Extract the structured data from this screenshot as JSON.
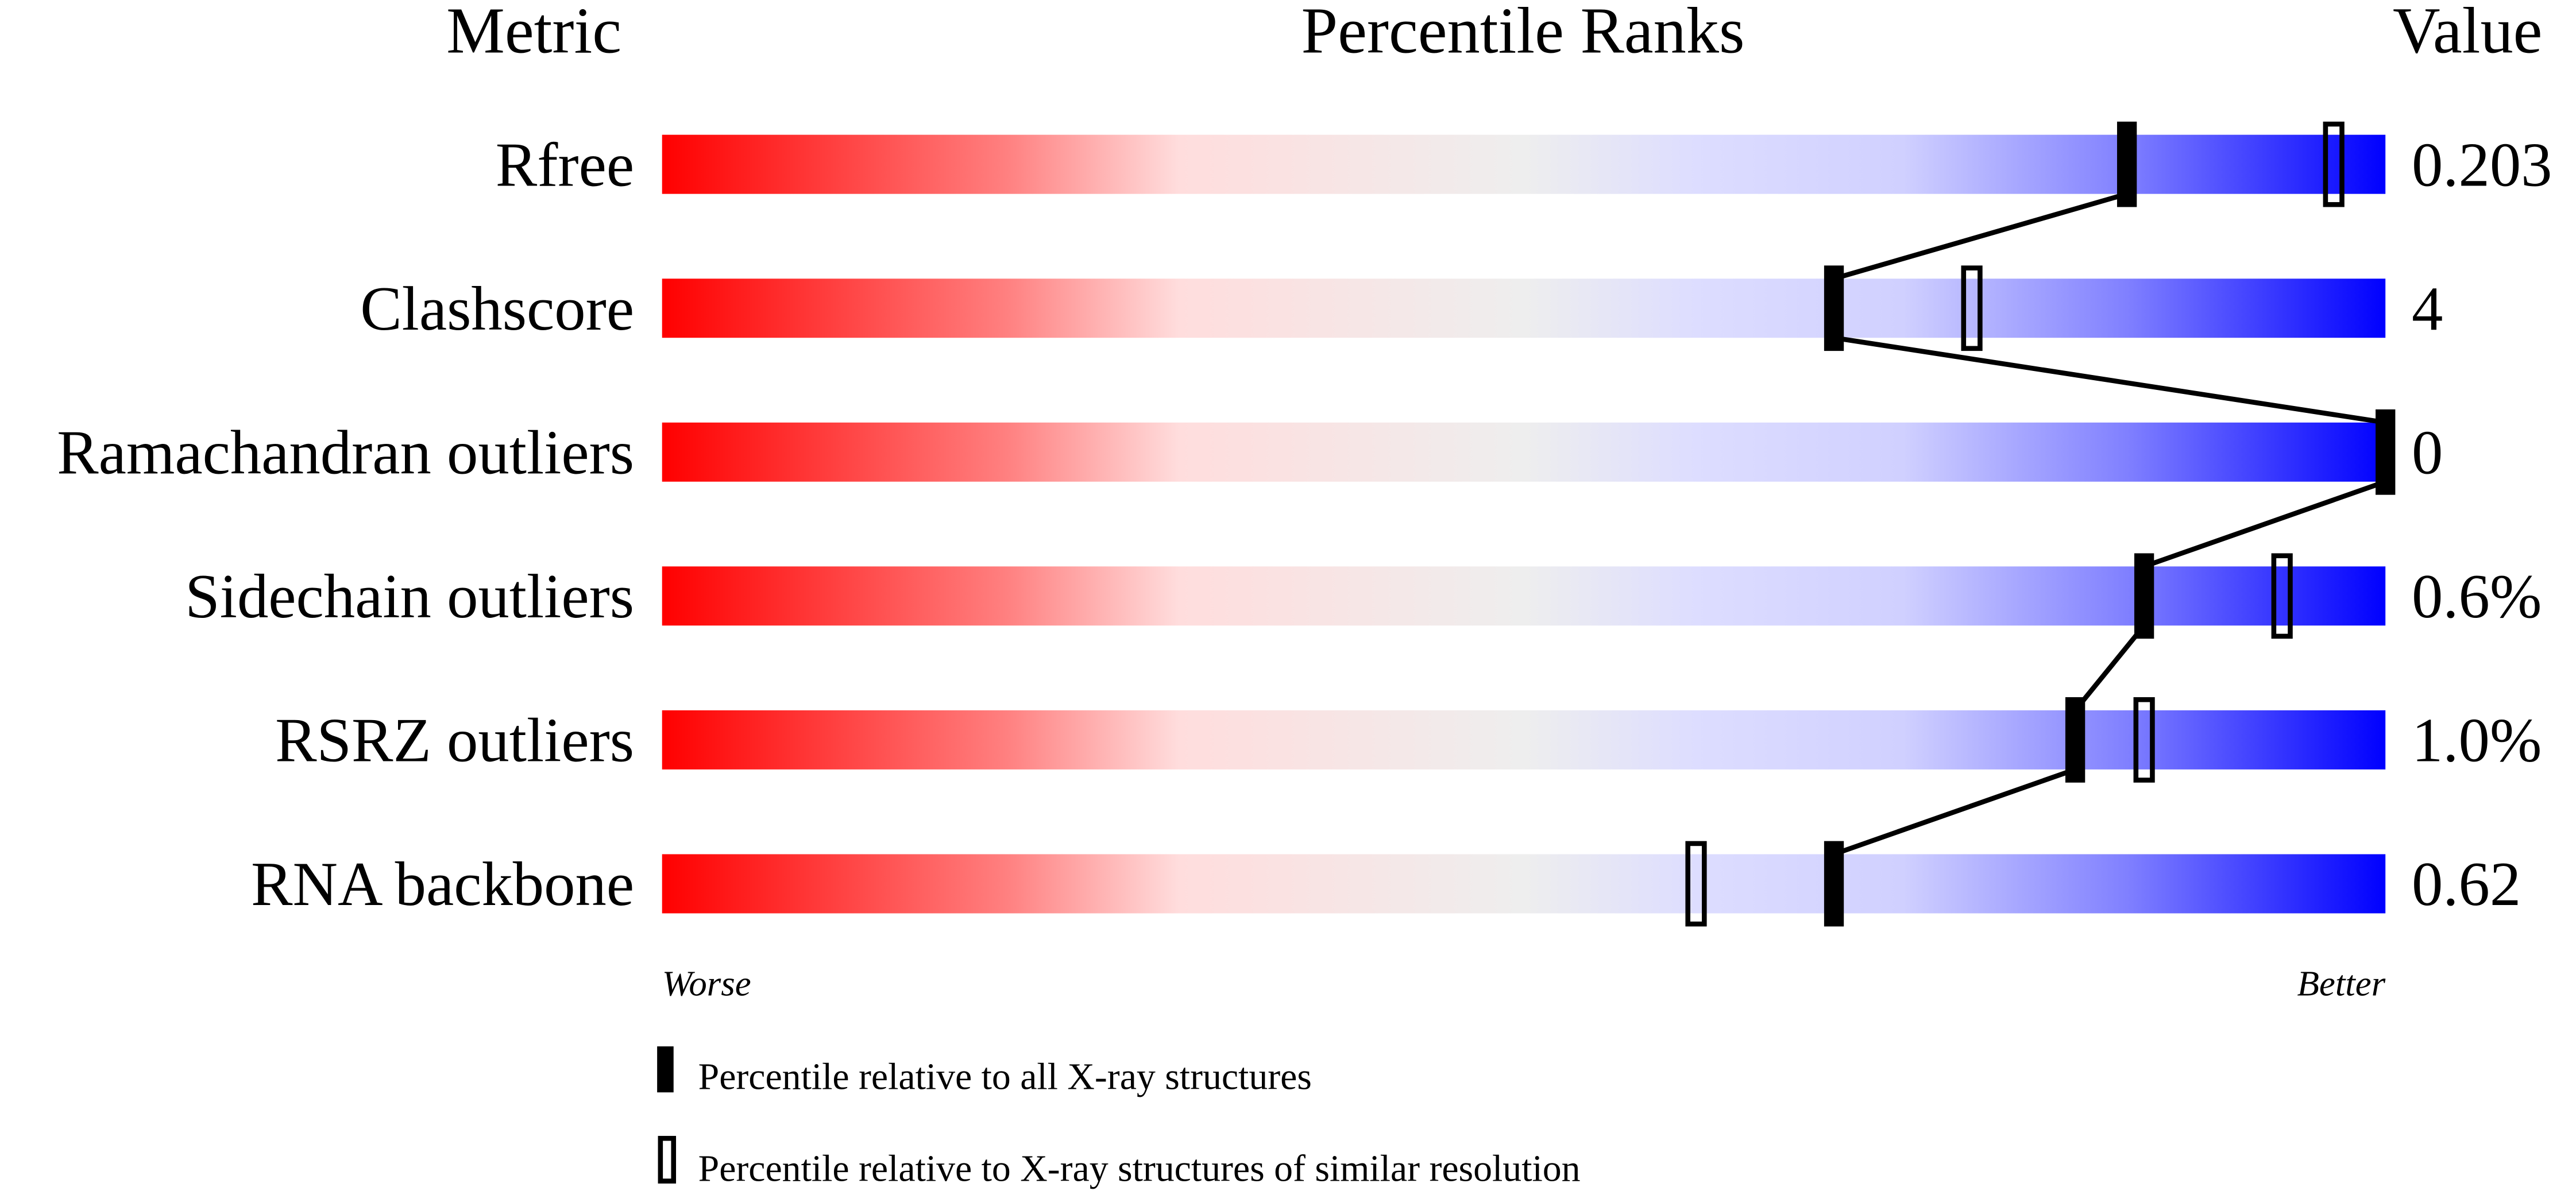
{
  "chart_data": {
    "type": "percentile-slider",
    "headers": {
      "metric": "Metric",
      "ranks": "Percentile Ranks",
      "value": "Value"
    },
    "xlim": [
      0,
      100
    ],
    "axis_labels": {
      "left": "Worse",
      "right": "Better"
    },
    "gradient_colors": [
      "#ff0000",
      "#ff8080",
      "#ffdddd",
      "#eeeeee",
      "#ddddff",
      "#d0d0ff",
      "#8080ff",
      "#0000ff"
    ],
    "metrics": [
      {
        "name": "Rfree",
        "value": "0.203",
        "percentile_all": 85,
        "percentile_similar": 97
      },
      {
        "name": "Clashscore",
        "value": "4",
        "percentile_all": 68,
        "percentile_similar": 76
      },
      {
        "name": "Ramachandran outliers",
        "value": "0",
        "percentile_all": 100,
        "percentile_similar": null
      },
      {
        "name": "Sidechain outliers",
        "value": "0.6%",
        "percentile_all": 86,
        "percentile_similar": 94
      },
      {
        "name": "RSRZ outliers",
        "value": "1.0%",
        "percentile_all": 82,
        "percentile_similar": 86
      },
      {
        "name": "RNA backbone",
        "value": "0.62",
        "percentile_all": 68,
        "percentile_similar": 60
      }
    ],
    "legend": [
      {
        "marker": "filled",
        "label": "Percentile relative to all X-ray structures"
      },
      {
        "marker": "open",
        "label": "Percentile relative to X-ray structures of similar resolution"
      }
    ]
  }
}
